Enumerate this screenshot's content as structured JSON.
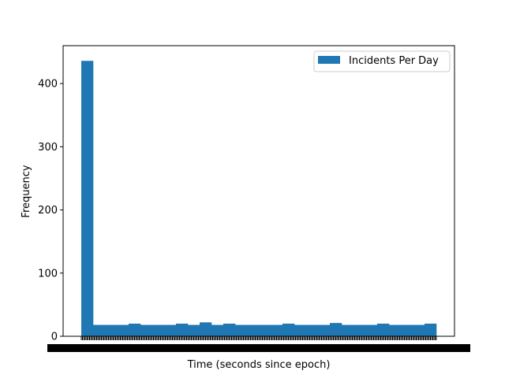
{
  "chart_data": {
    "type": "bar",
    "title": "",
    "xlabel": "Time (seconds since epoch)",
    "ylabel": "Frequency",
    "ylim": [
      0,
      460
    ],
    "yticks": [
      0,
      100,
      200,
      300,
      400
    ],
    "legend": {
      "label": "Incidents Per Day",
      "placement": "top-right"
    },
    "grid": false,
    "bar_color": "#1f77b4",
    "series": [
      {
        "name": "Incidents Per Day",
        "values": [
          436,
          18,
          18,
          18,
          20,
          18,
          18,
          18,
          20,
          18,
          22,
          18,
          20,
          18,
          18,
          18,
          18,
          20,
          18,
          18,
          18,
          21,
          18,
          18,
          18,
          20,
          18,
          18,
          18,
          20
        ]
      }
    ]
  }
}
